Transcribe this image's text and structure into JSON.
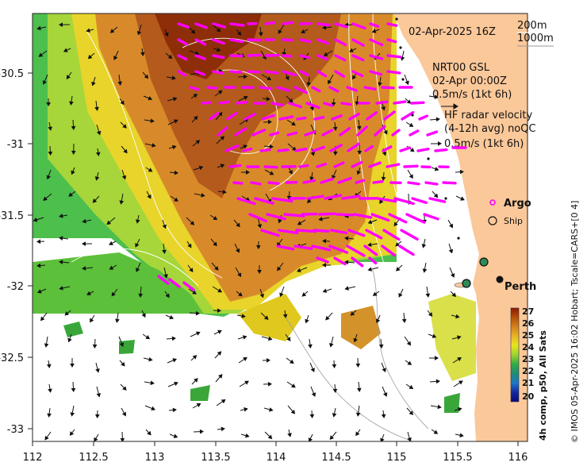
{
  "map": {
    "date_label": "02-Apr-2025 16Z",
    "depth_labels": [
      "200m",
      "1000m"
    ],
    "gsl_block": [
      "NRT00 GSL",
      "02-Apr 00:00Z",
      "0.5m/s (1kt 6h)"
    ],
    "hf_block": [
      "HF radar velocity",
      "(4-12h avg) noQC",
      "0.5m/s (1kt 6h)"
    ],
    "argo_label": "Argo",
    "ship_label": "Ship",
    "city_label": "Perth",
    "colorbar_title": "4h comp, p50, All Sats",
    "credit": "© IMOS 05-Apr-2025 16:02 Hobart; Tscale=CARS+[0 4]",
    "colors": {
      "land": "#fbc89a",
      "hf_arrow": "#ff00ff",
      "gsl_arrow": "#000000",
      "isobath": "#ffffff",
      "ship_marker": "#2e8b57"
    }
  },
  "axes": {
    "x_ticks": [
      "112",
      "112.5",
      "113",
      "113.5",
      "114",
      "114.5",
      "115",
      "115.5",
      "116"
    ],
    "y_ticks": [
      "-30.5",
      "-31",
      "-31.5",
      "-32",
      "-32.5",
      "-33"
    ]
  },
  "colorbar": {
    "ticks": [
      "27",
      "26",
      "25",
      "24",
      "23",
      "22",
      "21",
      "20"
    ],
    "colors": [
      "#8b1a00",
      "#b4500a",
      "#d2821e",
      "#e6b428",
      "#e6e61e",
      "#82c832",
      "#32aa46",
      "#1e8c78",
      "#1e5aaa",
      "#1428a0",
      "#0a0a78"
    ]
  }
}
